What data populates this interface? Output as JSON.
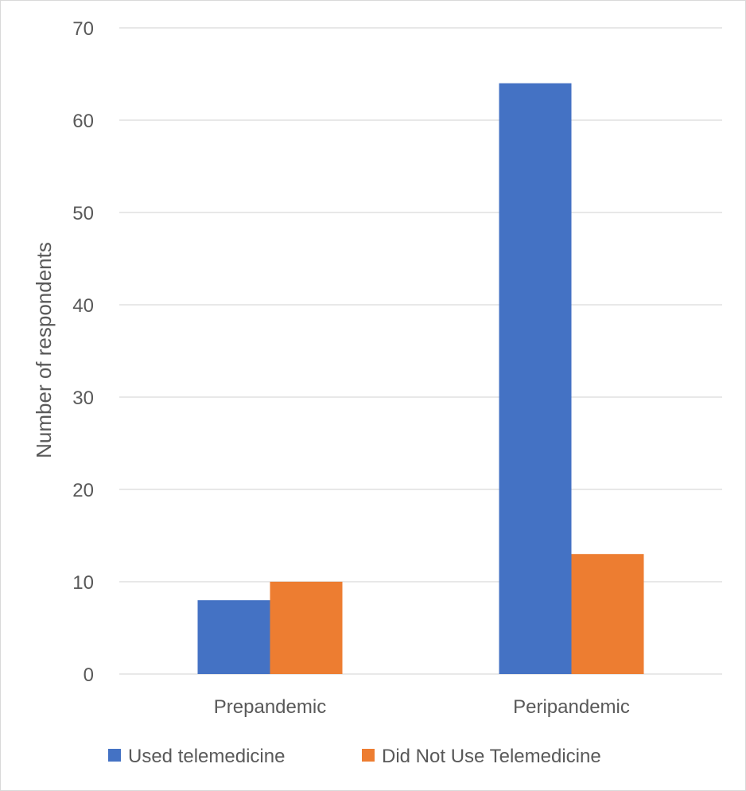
{
  "chart_data": {
    "type": "bar",
    "categories": [
      "Prepandemic",
      "Peripandemic"
    ],
    "series": [
      {
        "name": "Used telemedicine",
        "color": "#4472C4",
        "values": [
          8,
          64
        ]
      },
      {
        "name": "Did Not Use Telemedicine",
        "color": "#ED7D31",
        "values": [
          10,
          13
        ]
      }
    ],
    "ylabel": "Number of respondents",
    "ylim": [
      0,
      70
    ],
    "yticks": [
      0,
      10,
      20,
      30,
      40,
      50,
      60,
      70
    ],
    "grid": true,
    "legend_position": "bottom"
  }
}
